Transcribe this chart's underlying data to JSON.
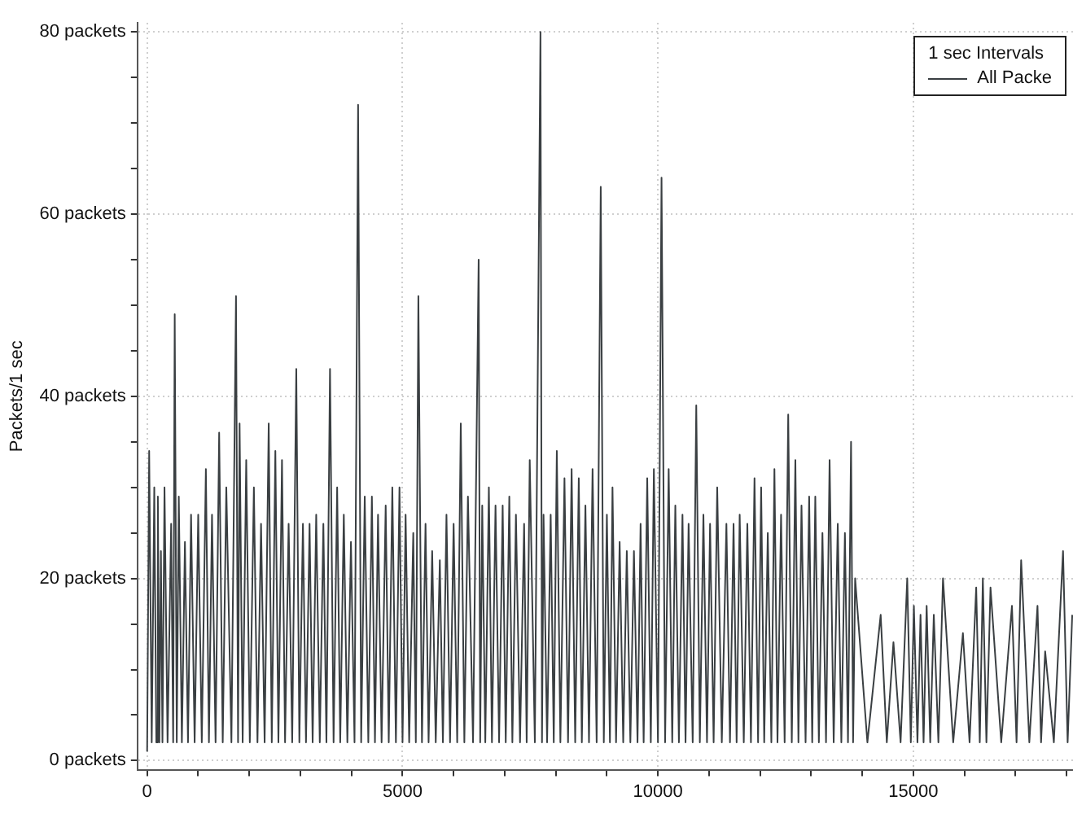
{
  "chart_data": {
    "type": "line",
    "ylabel": "Packets/1 sec",
    "legend_title": "1 sec Intervals",
    "legend": "top right",
    "grid": true,
    "marker": "none",
    "line_style": "solid",
    "xlim": [
      -190,
      18125
    ],
    "xticks": [
      0,
      {
        "value": 1000,
        "label": null
      },
      {
        "value": 2000,
        "label": null
      },
      {
        "value": 3000,
        "label": null
      },
      {
        "value": 4000,
        "label": null
      },
      5000,
      {
        "value": 6000,
        "label": null
      },
      {
        "value": 7000,
        "label": null
      },
      {
        "value": 8000,
        "label": null
      },
      {
        "value": 9000,
        "label": null
      },
      10000,
      {
        "value": 11000,
        "label": null
      },
      {
        "value": 12000,
        "label": null
      },
      {
        "value": 13000,
        "label": null
      },
      {
        "value": 14000,
        "label": null
      },
      15000,
      {
        "value": 16000,
        "label": null
      },
      {
        "value": 17000,
        "label": null
      },
      {
        "value": 18000,
        "label": null
      }
    ],
    "ylim": [
      -1,
      81
    ],
    "yticks": [
      {
        "value": 0,
        "label": "0 packets"
      },
      {
        "value": 5,
        "label": null
      },
      {
        "value": 10,
        "label": null
      },
      {
        "value": 15,
        "label": null
      },
      {
        "value": 20,
        "label": "20 packets"
      },
      {
        "value": 25,
        "label": null
      },
      {
        "value": 30,
        "label": null
      },
      {
        "value": 35,
        "label": null
      },
      {
        "value": 40,
        "label": "40 packets"
      },
      {
        "value": 45,
        "label": null
      },
      {
        "value": 50,
        "label": null
      },
      {
        "value": 55,
        "label": null
      },
      {
        "value": 60,
        "label": "60 packets"
      },
      {
        "value": 65,
        "label": null
      },
      {
        "value": 70,
        "label": null
      },
      {
        "value": 75,
        "label": null
      },
      {
        "value": 80,
        "label": "80 packets"
      }
    ],
    "series": [
      {
        "name": "All Packe",
        "color": "#3a3f42",
        "x": [
          0,
          40,
          90,
          140,
          180,
          210,
          240,
          270,
          300,
          340,
          400,
          470,
          510,
          540,
          580,
          620,
          680,
          740,
          800,
          860,
          930,
          1000,
          1070,
          1150,
          1210,
          1270,
          1340,
          1410,
          1480,
          1550,
          1650,
          1740,
          1780,
          1810,
          1870,
          1940,
          2010,
          2090,
          2160,
          2230,
          2300,
          2380,
          2440,
          2510,
          2570,
          2640,
          2700,
          2770,
          2840,
          2920,
          2980,
          3050,
          3110,
          3180,
          3240,
          3310,
          3380,
          3450,
          3510,
          3580,
          3650,
          3720,
          3780,
          3850,
          3920,
          3990,
          4060,
          4130,
          4190,
          4260,
          4330,
          4400,
          4460,
          4520,
          4590,
          4670,
          4730,
          4800,
          4870,
          4940,
          5000,
          5060,
          5130,
          5210,
          5260,
          5310,
          5380,
          5450,
          5510,
          5580,
          5650,
          5730,
          5790,
          5860,
          5930,
          6000,
          6070,
          6140,
          6210,
          6280,
          6380,
          6490,
          6520,
          6560,
          6620,
          6690,
          6750,
          6820,
          6890,
          6960,
          7020,
          7090,
          7150,
          7220,
          7300,
          7380,
          7430,
          7490,
          7590,
          7700,
          7730,
          7760,
          7830,
          7900,
          7960,
          8020,
          8090,
          8170,
          8240,
          8310,
          8380,
          8450,
          8510,
          8580,
          8650,
          8720,
          8800,
          8880,
          8940,
          9000,
          9060,
          9110,
          9180,
          9250,
          9320,
          9390,
          9460,
          9530,
          9600,
          9660,
          9720,
          9790,
          9860,
          9920,
          10000,
          10070,
          10140,
          10210,
          10280,
          10340,
          10410,
          10480,
          10540,
          10600,
          10680,
          10750,
          10820,
          10890,
          10960,
          11020,
          11090,
          11160,
          11250,
          11340,
          11410,
          11480,
          11540,
          11600,
          11680,
          11750,
          11820,
          11890,
          11960,
          12020,
          12080,
          12150,
          12220,
          12280,
          12340,
          12410,
          12480,
          12550,
          12620,
          12690,
          12750,
          12810,
          12890,
          12960,
          13020,
          13080,
          13150,
          13220,
          13290,
          13360,
          13440,
          13520,
          13590,
          13660,
          13720,
          13780,
          13820,
          13860,
          14100,
          14360,
          14480,
          14610,
          14750,
          14880,
          14950,
          15010,
          15080,
          15140,
          15200,
          15260,
          15330,
          15400,
          15490,
          15580,
          15780,
          15970,
          16100,
          16230,
          16300,
          16360,
          16430,
          16510,
          16720,
          16930,
          17020,
          17110,
          17270,
          17430,
          17500,
          17580,
          17750,
          17930,
          18020,
          18110
        ],
        "values": [
          1,
          34,
          2,
          30,
          2,
          29,
          2,
          23,
          2,
          30,
          2,
          26,
          2,
          49,
          2,
          29,
          2,
          24,
          2,
          27,
          2,
          27,
          2,
          32,
          2,
          27,
          2,
          36,
          2,
          30,
          2,
          51,
          2,
          37,
          2,
          33,
          2,
          30,
          2,
          26,
          2,
          37,
          2,
          34,
          2,
          33,
          2,
          26,
          2,
          43,
          2,
          26,
          2,
          26,
          2,
          27,
          2,
          26,
          2,
          43,
          2,
          30,
          2,
          27,
          2,
          24,
          2,
          72,
          2,
          29,
          2,
          29,
          2,
          27,
          2,
          28,
          2,
          30,
          2,
          30,
          2,
          27,
          2,
          25,
          2,
          51,
          2,
          26,
          2,
          23,
          2,
          22,
          2,
          27,
          2,
          26,
          2,
          37,
          2,
          29,
          2,
          55,
          2,
          28,
          2,
          30,
          2,
          28,
          2,
          28,
          2,
          29,
          2,
          27,
          2,
          26,
          2,
          33,
          2,
          80,
          2,
          27,
          2,
          27,
          2,
          34,
          2,
          31,
          2,
          32,
          2,
          31,
          2,
          28,
          2,
          32,
          2,
          63,
          2,
          27,
          2,
          30,
          2,
          24,
          2,
          23,
          2,
          23,
          2,
          26,
          2,
          31,
          2,
          32,
          2,
          64,
          2,
          32,
          2,
          28,
          2,
          27,
          2,
          26,
          2,
          39,
          2,
          27,
          2,
          26,
          2,
          30,
          2,
          26,
          2,
          26,
          2,
          27,
          2,
          26,
          2,
          31,
          2,
          30,
          2,
          25,
          2,
          32,
          2,
          27,
          2,
          38,
          2,
          33,
          2,
          28,
          2,
          29,
          2,
          29,
          2,
          25,
          2,
          33,
          2,
          26,
          2,
          25,
          2,
          35,
          2,
          20,
          2,
          16,
          2,
          13,
          2,
          20,
          2,
          17,
          2,
          16,
          2,
          17,
          2,
          16,
          2,
          20,
          2,
          14,
          2,
          19,
          2,
          20,
          2,
          19,
          2,
          17,
          2,
          22,
          2,
          17,
          2,
          12,
          2,
          23,
          2,
          16
        ]
      }
    ]
  }
}
